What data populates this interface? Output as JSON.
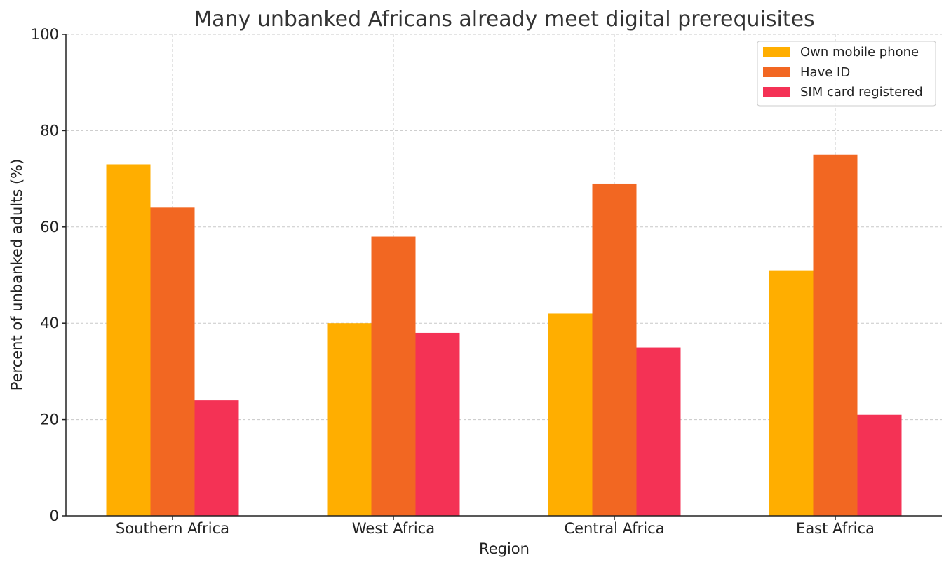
{
  "chart_data": {
    "type": "bar",
    "title": "Many unbanked Africans already meet digital prerequisites",
    "xlabel": "Region",
    "ylabel": "Percent of unbanked adults (%)",
    "categories": [
      "Southern Africa",
      "West Africa",
      "Central Africa",
      "East Africa"
    ],
    "series": [
      {
        "name": "Own mobile phone",
        "color": "#FFAE00",
        "values": [
          73,
          40,
          42,
          51
        ]
      },
      {
        "name": "Have ID",
        "color": "#F26722",
        "values": [
          64,
          58,
          69,
          75
        ]
      },
      {
        "name": "SIM card registered",
        "color": "#F43255",
        "values": [
          24,
          38,
          35,
          21
        ]
      }
    ],
    "ylim": [
      0,
      100
    ],
    "yticks": [
      0,
      20,
      40,
      60,
      80,
      100
    ],
    "grid": true,
    "legend_position": "top-right"
  }
}
